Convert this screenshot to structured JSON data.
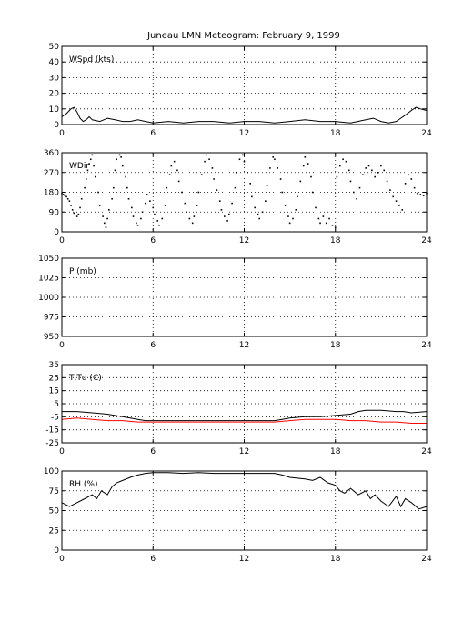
{
  "figure": {
    "title": "Juneau LMN Meteogram:  February  9, 1999"
  },
  "chart_data": [
    {
      "type": "line",
      "title": "",
      "panel_label": "WSpd (kts)",
      "xlim": [
        0,
        24
      ],
      "ylim": [
        0,
        50
      ],
      "xticks": [
        0,
        6,
        12,
        18,
        24
      ],
      "yticks": [
        0,
        10,
        20,
        30,
        40,
        50
      ],
      "grid": true,
      "series": [
        {
          "color": "#000000",
          "style": "line",
          "x": [
            0,
            0.3,
            0.6,
            0.8,
            1,
            1.2,
            1.4,
            1.6,
            1.8,
            2,
            2.5,
            3,
            3.5,
            4,
            4.5,
            5,
            5.5,
            6,
            7,
            8,
            9,
            10,
            11,
            12,
            13,
            14,
            15,
            16,
            17,
            18,
            19,
            20,
            20.5,
            21,
            21.5,
            22,
            22.3,
            22.6,
            23,
            23.3,
            23.6,
            24
          ],
          "y": [
            5,
            7,
            10,
            11,
            8,
            4,
            2,
            3,
            5,
            3,
            2,
            4,
            3,
            2,
            2,
            3,
            2,
            1,
            2,
            1,
            2,
            2,
            1,
            2,
            2,
            1,
            2,
            3,
            2,
            2,
            1,
            3,
            4,
            2,
            1,
            2,
            4,
            6,
            9,
            11,
            10,
            9
          ]
        }
      ]
    },
    {
      "type": "scatter",
      "title": "",
      "panel_label": "WDir",
      "xlim": [
        0,
        24
      ],
      "ylim": [
        0,
        360
      ],
      "xticks": [
        0,
        6,
        12,
        18,
        24
      ],
      "yticks": [
        0,
        90,
        180,
        270,
        360
      ],
      "grid": true,
      "series": [
        {
          "color": "#000000",
          "style": "points",
          "x": [
            0,
            0.1,
            0.2,
            0.3,
            0.4,
            0.5,
            0.6,
            0.7,
            0.8,
            1.0,
            1.1,
            1.2,
            1.3,
            1.5,
            1.6,
            1.7,
            1.8,
            1.9,
            2.0,
            2.1,
            2.2,
            2.4,
            2.5,
            2.7,
            2.8,
            2.9,
            3.0,
            3.1,
            3.3,
            3.4,
            3.5,
            3.6,
            3.8,
            3.9,
            4.0,
            4.2,
            4.3,
            4.4,
            4.6,
            4.7,
            4.9,
            5.0,
            5.2,
            5.3,
            5.5,
            5.6,
            5.8,
            6.0,
            6.1,
            6.3,
            6.4,
            6.6,
            6.8,
            6.9,
            7.1,
            7.2,
            7.4,
            7.6,
            7.7,
            7.9,
            8.1,
            8.2,
            8.4,
            8.6,
            8.7,
            8.9,
            9.0,
            9.2,
            9.4,
            9.5,
            9.7,
            9.9,
            10.0,
            10.2,
            10.4,
            10.5,
            10.7,
            10.9,
            11.0,
            11.2,
            11.4,
            11.5,
            11.7,
            11.9,
            12.0,
            12.2,
            12.4,
            12.5,
            12.7,
            12.9,
            13.0,
            13.2,
            13.4,
            13.5,
            13.7,
            13.9,
            14.0,
            14.2,
            14.4,
            14.5,
            14.7,
            14.9,
            15.0,
            15.2,
            15.4,
            15.5,
            15.7,
            15.9,
            16.0,
            16.2,
            16.4,
            16.5,
            16.7,
            16.9,
            17.0,
            17.2,
            17.4,
            17.6,
            17.8,
            18.0,
            18.1,
            18.3,
            18.5,
            18.7,
            18.9,
            19.0,
            19.2,
            19.4,
            19.6,
            19.8,
            20.0,
            20.2,
            20.4,
            20.6,
            20.8,
            21.0,
            21.2,
            21.4,
            21.6,
            21.8,
            22.0,
            22.2,
            22.4,
            22.6,
            22.8,
            23.0,
            23.2,
            23.4,
            23.6,
            23.8,
            24.0
          ],
          "y": [
            175,
            170,
            165,
            160,
            150,
            140,
            120,
            100,
            85,
            70,
            80,
            110,
            150,
            200,
            240,
            280,
            310,
            330,
            350,
            300,
            250,
            180,
            120,
            70,
            40,
            20,
            60,
            100,
            150,
            200,
            280,
            330,
            350,
            340,
            300,
            250,
            200,
            150,
            110,
            70,
            40,
            30,
            60,
            90,
            130,
            170,
            140,
            110,
            80,
            50,
            30,
            60,
            120,
            200,
            260,
            300,
            320,
            280,
            230,
            180,
            130,
            90,
            60,
            40,
            70,
            120,
            180,
            260,
            320,
            350,
            330,
            290,
            240,
            190,
            140,
            100,
            70,
            50,
            80,
            130,
            200,
            270,
            330,
            350,
            320,
            270,
            220,
            160,
            110,
            80,
            60,
            90,
            140,
            210,
            290,
            340,
            330,
            290,
            240,
            180,
            120,
            70,
            40,
            60,
            100,
            160,
            230,
            300,
            340,
            310,
            250,
            180,
            110,
            60,
            40,
            70,
            40,
            60,
            30,
            20,
            250,
            300,
            330,
            320,
            280,
            230,
            180,
            150,
            200,
            260,
            290,
            300,
            280,
            250,
            270,
            300,
            280,
            230,
            190,
            160,
            140,
            120,
            100,
            220,
            260,
            240,
            200,
            175,
            170,
            165,
            175
          ]
        }
      ]
    },
    {
      "type": "line",
      "title": "",
      "panel_label": "P (mb)",
      "xlim": [
        0,
        24
      ],
      "ylim": [
        950,
        1050
      ],
      "xticks": [
        0,
        6,
        12,
        18,
        24
      ],
      "yticks": [
        950,
        975,
        1000,
        1025,
        1050
      ],
      "grid": true,
      "series": []
    },
    {
      "type": "line",
      "title": "",
      "panel_label": "T,Td (C)",
      "xlim": [
        0,
        24
      ],
      "ylim": [
        -25,
        35
      ],
      "xticks": [
        0,
        6,
        12,
        18,
        24
      ],
      "yticks": [
        -25,
        -15,
        -5,
        5,
        15,
        25,
        35
      ],
      "grid": true,
      "series": [
        {
          "color": "#000000",
          "style": "line",
          "x": [
            0,
            1,
            2,
            3,
            4,
            5,
            5.5,
            6,
            7,
            8,
            9,
            10,
            11,
            12,
            13,
            14,
            14.5,
            15,
            16,
            17,
            18,
            19,
            19.5,
            20,
            21,
            22,
            22.5,
            23,
            24
          ],
          "y": [
            -1,
            -1,
            -2,
            -3,
            -5,
            -7,
            -8,
            -8,
            -8,
            -8,
            -8,
            -8,
            -8,
            -8,
            -8,
            -8,
            -7,
            -6,
            -5,
            -5,
            -4,
            -3,
            -1,
            0,
            0,
            -1,
            -1,
            -2,
            -1
          ]
        },
        {
          "color": "#ff0000",
          "style": "line",
          "x": [
            0,
            1,
            2,
            3,
            4,
            5,
            6,
            7,
            8,
            9,
            10,
            11,
            12,
            13,
            14,
            15,
            16,
            17,
            18,
            19,
            20,
            21,
            22,
            23,
            24
          ],
          "y": [
            -7,
            -6,
            -7,
            -8,
            -8,
            -9,
            -9,
            -9,
            -9,
            -9,
            -9,
            -9,
            -9,
            -9,
            -9,
            -8,
            -7,
            -7,
            -7,
            -8,
            -8,
            -9,
            -9,
            -10,
            -10
          ]
        }
      ]
    },
    {
      "type": "line",
      "title": "",
      "panel_label": "RH (%)",
      "xlim": [
        0,
        24
      ],
      "ylim": [
        0,
        100
      ],
      "xticks": [
        0,
        6,
        12,
        18,
        24
      ],
      "yticks": [
        0,
        25,
        50,
        75,
        100
      ],
      "grid": true,
      "series": [
        {
          "color": "#000000",
          "style": "line",
          "x": [
            0,
            0.5,
            1,
            1.5,
            2,
            2.3,
            2.6,
            3,
            3.3,
            3.6,
            4,
            4.5,
            5,
            5.5,
            6,
            7,
            8,
            9,
            10,
            11,
            12,
            13,
            14,
            14.5,
            15,
            16,
            16.5,
            17,
            17.5,
            18,
            18.3,
            18.6,
            19,
            19.5,
            20,
            20.3,
            20.6,
            21,
            21.5,
            22,
            22.3,
            22.6,
            23,
            23.5,
            24
          ],
          "y": [
            60,
            55,
            60,
            65,
            70,
            65,
            75,
            70,
            80,
            85,
            88,
            92,
            95,
            97,
            98,
            98,
            97,
            98,
            97,
            97,
            97,
            97,
            97,
            95,
            92,
            90,
            88,
            92,
            85,
            82,
            75,
            72,
            78,
            70,
            75,
            65,
            70,
            62,
            55,
            68,
            55,
            65,
            60,
            52,
            55
          ]
        }
      ]
    }
  ]
}
